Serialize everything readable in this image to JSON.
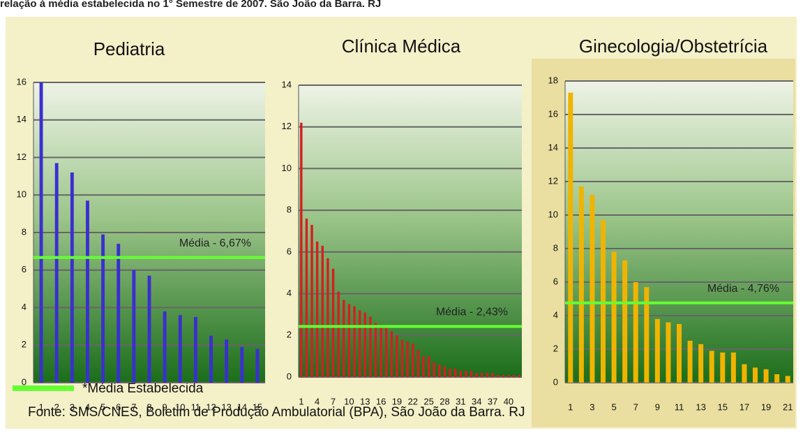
{
  "heading": "relação à média estabelecida no 1° Semestre de 2007. São João da Barra. RJ",
  "legend_label": "*Média Estabelecida",
  "source": "Fonte: SMS/CNES, Boletim de Produção Ambulatorial (BPA), São João da Barra. RJ",
  "chart_data": [
    {
      "type": "bar",
      "title": "Pediatria",
      "color": "#3a2fd0",
      "categories": [
        "1",
        "2",
        "3",
        "4",
        "5",
        "6",
        "7",
        "8",
        "9",
        "10",
        "11",
        "12",
        "13",
        "14",
        "15"
      ],
      "values": [
        16,
        11.7,
        11.2,
        9.7,
        7.9,
        7.4,
        6.0,
        5.7,
        3.8,
        3.6,
        3.5,
        2.5,
        2.3,
        1.9,
        1.8
      ],
      "ylim": [
        0,
        16
      ],
      "yticks": [
        0,
        2,
        4,
        6,
        8,
        10,
        12,
        14,
        16
      ],
      "grid": true,
      "mean": 6.67,
      "mean_color": "#66ff33",
      "annotation": "Média  -  6,67%"
    },
    {
      "type": "bar",
      "title": "Clínica Médica",
      "color": "#d42020",
      "categories": [
        "1",
        null,
        null,
        "4",
        null,
        null,
        "7",
        null,
        null,
        "10",
        null,
        null,
        "13",
        null,
        null,
        "16",
        null,
        null,
        "19",
        null,
        null,
        "22",
        null,
        null,
        "25",
        null,
        null,
        "28",
        null,
        null,
        "31",
        null,
        null,
        "34",
        null,
        null,
        "37",
        null,
        null,
        "40",
        null,
        null
      ],
      "values": [
        12.2,
        7.6,
        7.3,
        6.5,
        6.3,
        5.7,
        5.2,
        4.1,
        3.7,
        3.5,
        3.4,
        3.2,
        3.1,
        2.9,
        2.6,
        2.5,
        2.4,
        2.2,
        2.0,
        1.8,
        1.7,
        1.6,
        1.3,
        1.0,
        1.0,
        0.7,
        0.6,
        0.5,
        0.4,
        0.4,
        0.3,
        0.3,
        0.3,
        0.2,
        0.2,
        0.2,
        0.2,
        0.1,
        0.1,
        0.1,
        0.1,
        0.1
      ],
      "ylim": [
        0,
        14
      ],
      "yticks": [
        0,
        2,
        4,
        6,
        8,
        10,
        12,
        14
      ],
      "grid": true,
      "mean": 2.43,
      "mean_color": "#66ff33",
      "annotation": "Média  -  2,43%"
    },
    {
      "type": "bar",
      "title": "Ginecologia/Obstetrícia",
      "color": "#f0b400",
      "categories": [
        "1",
        null,
        "3",
        null,
        "5",
        null,
        "7",
        null,
        "9",
        null,
        "11",
        null,
        "13",
        null,
        "15",
        null,
        "17",
        null,
        "19",
        null,
        "21"
      ],
      "values": [
        17.3,
        11.7,
        11.2,
        9.7,
        7.8,
        7.3,
        6.0,
        5.7,
        3.8,
        3.6,
        3.5,
        2.5,
        2.3,
        1.9,
        1.8,
        1.8,
        1.1,
        0.9,
        0.8,
        0.5,
        0.4
      ],
      "ylim": [
        0,
        18
      ],
      "yticks": [
        0,
        2,
        4,
        6,
        8,
        10,
        12,
        14,
        16,
        18
      ],
      "grid": true,
      "mean": 4.76,
      "mean_color": "#66ff33",
      "annotation": "Média  -  4,76%"
    }
  ]
}
